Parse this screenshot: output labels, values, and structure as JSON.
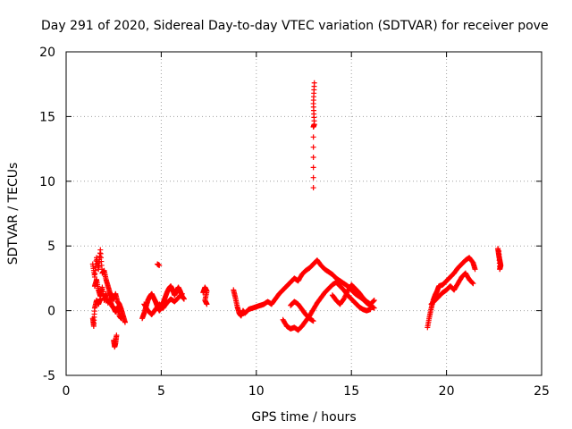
{
  "chart_data": {
    "type": "scatter",
    "title": "Day 291 of 2020, Sidereal Day-to-day VTEC variation (SDTVAR) for receiver pove",
    "xlabel": "GPS time / hours",
    "ylabel": "SDTVAR / TECUs",
    "xlim": [
      0,
      25
    ],
    "ylim": [
      -5,
      20
    ],
    "xticks": [
      "0",
      "5",
      "10",
      "15",
      "20",
      "25"
    ],
    "yticks": [
      "-5",
      "0",
      "5",
      "10",
      "15",
      "20"
    ],
    "grid": true,
    "marker": "plus",
    "marker_color": "#ff0000",
    "series": [
      {
        "name": "SDTVAR",
        "color": "#ff0000",
        "segments": [
          [
            [
              1.4,
              3.6
            ],
            [
              1.5,
              2.6
            ],
            [
              1.6,
              4.1
            ],
            [
              1.7,
              3.2
            ],
            [
              1.8,
              4.7
            ],
            [
              1.9,
              2.9
            ],
            [
              2.0,
              3.1
            ],
            [
              2.1,
              2.4
            ],
            [
              2.2,
              1.9
            ],
            [
              2.3,
              1.4
            ],
            [
              2.4,
              1.1
            ],
            [
              2.5,
              0.9
            ],
            [
              2.6,
              1.3
            ],
            [
              2.7,
              0.7
            ],
            [
              2.8,
              0.5
            ],
            [
              2.9,
              0.1
            ],
            [
              3.0,
              -0.4
            ],
            [
              3.1,
              -0.9
            ]
          ],
          [
            [
              1.5,
              1.9
            ],
            [
              1.6,
              2.4
            ],
            [
              1.7,
              1.6
            ],
            [
              1.8,
              1.1
            ],
            [
              1.9,
              1.8
            ],
            [
              2.0,
              0.8
            ],
            [
              2.1,
              1.3
            ],
            [
              2.2,
              0.6
            ],
            [
              2.3,
              0.9
            ],
            [
              2.4,
              0.4
            ],
            [
              2.5,
              0.2
            ],
            [
              2.6,
              -0.1
            ],
            [
              2.7,
              0.3
            ],
            [
              2.8,
              -0.4
            ],
            [
              2.9,
              -0.6
            ]
          ],
          [
            [
              1.4,
              -0.6
            ],
            [
              1.45,
              -1.2
            ],
            [
              1.5,
              0.2
            ],
            [
              1.6,
              0.8
            ],
            [
              1.7,
              0.5
            ],
            [
              1.8,
              0.9
            ]
          ],
          [
            [
              2.5,
              -2.3
            ],
            [
              2.55,
              -2.8
            ],
            [
              2.6,
              -2.5
            ],
            [
              2.65,
              -1.9
            ]
          ],
          [
            [
              4.0,
              -0.6
            ],
            [
              4.1,
              -0.2
            ],
            [
              4.2,
              0.3
            ],
            [
              4.3,
              0.8
            ],
            [
              4.4,
              1.1
            ],
            [
              4.5,
              1.3
            ],
            [
              4.6,
              1.0
            ],
            [
              4.7,
              0.7
            ],
            [
              4.8,
              0.3
            ],
            [
              4.9,
              0.0
            ],
            [
              5.0,
              0.2
            ],
            [
              5.1,
              0.6
            ],
            [
              5.2,
              1.0
            ],
            [
              5.3,
              1.4
            ],
            [
              5.4,
              1.7
            ],
            [
              5.5,
              1.9
            ],
            [
              5.6,
              1.6
            ],
            [
              5.7,
              1.2
            ],
            [
              5.8,
              1.5
            ],
            [
              5.9,
              1.8
            ],
            [
              6.0,
              1.5
            ],
            [
              6.1,
              1.1
            ],
            [
              6.2,
              0.9
            ]
          ],
          [
            [
              4.1,
              0.5
            ],
            [
              4.3,
              0.0
            ],
            [
              4.5,
              -0.3
            ],
            [
              4.7,
              0.1
            ],
            [
              4.9,
              0.5
            ],
            [
              5.1,
              0.2
            ],
            [
              5.3,
              0.6
            ],
            [
              5.5,
              0.9
            ],
            [
              5.7,
              0.7
            ],
            [
              5.9,
              1.0
            ],
            [
              6.1,
              1.3
            ]
          ],
          [
            [
              4.8,
              3.6
            ],
            [
              4.9,
              3.5
            ]
          ],
          [
            [
              7.2,
              1.4
            ],
            [
              7.3,
              1.8
            ],
            [
              7.4,
              1.5
            ],
            [
              7.3,
              0.8
            ],
            [
              7.4,
              0.5
            ]
          ],
          [
            [
              8.8,
              1.6
            ],
            [
              8.9,
              1.0
            ],
            [
              9.0,
              0.3
            ],
            [
              9.1,
              -0.2
            ],
            [
              9.2,
              -0.4
            ],
            [
              9.3,
              0.0
            ],
            [
              9.4,
              -0.2
            ],
            [
              9.6,
              0.1
            ],
            [
              9.8,
              0.2
            ],
            [
              10.0,
              0.3
            ],
            [
              10.2,
              0.4
            ],
            [
              10.4,
              0.5
            ],
            [
              10.6,
              0.7
            ],
            [
              10.8,
              0.5
            ],
            [
              11.0,
              0.9
            ],
            [
              11.2,
              1.3
            ],
            [
              11.4,
              1.6
            ],
            [
              11.6,
              1.9
            ],
            [
              11.8,
              2.2
            ],
            [
              12.0,
              2.5
            ],
            [
              12.2,
              2.3
            ],
            [
              12.4,
              2.8
            ],
            [
              12.6,
              3.1
            ],
            [
              12.8,
              3.3
            ],
            [
              13.0,
              3.6
            ],
            [
              13.2,
              3.9
            ],
            [
              13.4,
              3.5
            ],
            [
              13.6,
              3.2
            ],
            [
              13.8,
              3.0
            ],
            [
              14.0,
              2.8
            ],
            [
              14.2,
              2.5
            ],
            [
              14.4,
              2.3
            ],
            [
              14.6,
              2.1
            ],
            [
              14.8,
              1.9
            ],
            [
              15.0,
              1.6
            ],
            [
              15.2,
              1.3
            ],
            [
              15.4,
              1.1
            ],
            [
              15.6,
              0.9
            ],
            [
              15.8,
              0.6
            ],
            [
              16.0,
              0.4
            ],
            [
              16.2,
              0.2
            ]
          ],
          [
            [
              11.4,
              -0.7
            ],
            [
              11.6,
              -1.2
            ],
            [
              11.8,
              -1.4
            ],
            [
              12.0,
              -1.3
            ],
            [
              12.2,
              -1.5
            ],
            [
              12.4,
              -1.2
            ],
            [
              12.6,
              -0.8
            ],
            [
              12.8,
              -0.4
            ],
            [
              13.0,
              0.1
            ],
            [
              13.2,
              0.6
            ],
            [
              13.4,
              1.0
            ],
            [
              13.6,
              1.4
            ],
            [
              13.8,
              1.7
            ],
            [
              14.0,
              2.0
            ],
            [
              14.2,
              2.2
            ],
            [
              14.4,
              1.9
            ],
            [
              14.6,
              1.6
            ],
            [
              14.8,
              1.2
            ],
            [
              15.0,
              0.9
            ],
            [
              15.2,
              0.6
            ],
            [
              15.4,
              0.3
            ],
            [
              15.6,
              0.1
            ],
            [
              15.8,
              0.0
            ],
            [
              16.0,
              0.1
            ]
          ],
          [
            [
              11.8,
              0.4
            ],
            [
              12.0,
              0.7
            ],
            [
              12.2,
              0.5
            ],
            [
              12.4,
              0.1
            ],
            [
              12.6,
              -0.3
            ],
            [
              12.8,
              -0.6
            ],
            [
              13.0,
              -0.8
            ]
          ],
          [
            [
              14.0,
              1.2
            ],
            [
              14.2,
              0.8
            ],
            [
              14.4,
              0.5
            ],
            [
              14.6,
              0.9
            ],
            [
              14.8,
              1.5
            ],
            [
              15.0,
              2.0
            ],
            [
              15.2,
              1.7
            ],
            [
              15.4,
              1.4
            ],
            [
              15.6,
              1.0
            ],
            [
              15.8,
              0.7
            ],
            [
              16.0,
              0.5
            ],
            [
              16.2,
              0.8
            ]
          ],
          [
            [
              13.0,
              9.5
            ],
            [
              13.0,
              14.2
            ],
            [
              13.05,
              14.4
            ],
            [
              13.0,
              16.0
            ],
            [
              13.05,
              17.6
            ]
          ],
          [
            [
              19.0,
              -1.3
            ],
            [
              19.1,
              -0.5
            ],
            [
              19.2,
              0.2
            ],
            [
              19.3,
              0.8
            ],
            [
              19.4,
              1.2
            ],
            [
              19.5,
              1.5
            ],
            [
              19.6,
              1.9
            ],
            [
              19.8,
              2.0
            ],
            [
              20.0,
              2.3
            ],
            [
              20.2,
              2.6
            ],
            [
              20.4,
              2.9
            ],
            [
              20.6,
              3.3
            ],
            [
              20.8,
              3.6
            ],
            [
              21.0,
              3.9
            ],
            [
              21.2,
              4.1
            ],
            [
              21.4,
              3.7
            ],
            [
              21.5,
              3.2
            ]
          ],
          [
            [
              19.2,
              0.5
            ],
            [
              19.4,
              0.8
            ],
            [
              19.6,
              1.1
            ],
            [
              19.8,
              1.4
            ],
            [
              20.0,
              1.6
            ],
            [
              20.2,
              1.9
            ],
            [
              20.4,
              1.6
            ],
            [
              20.6,
              2.1
            ],
            [
              20.8,
              2.6
            ],
            [
              21.0,
              2.9
            ],
            [
              21.2,
              2.4
            ],
            [
              21.4,
              2.1
            ]
          ],
          [
            [
              22.7,
              4.8
            ],
            [
              22.75,
              4.3
            ],
            [
              22.8,
              3.9
            ],
            [
              22.85,
              3.5
            ],
            [
              22.8,
              3.2
            ],
            [
              22.75,
              4.6
            ]
          ]
        ]
      }
    ]
  }
}
